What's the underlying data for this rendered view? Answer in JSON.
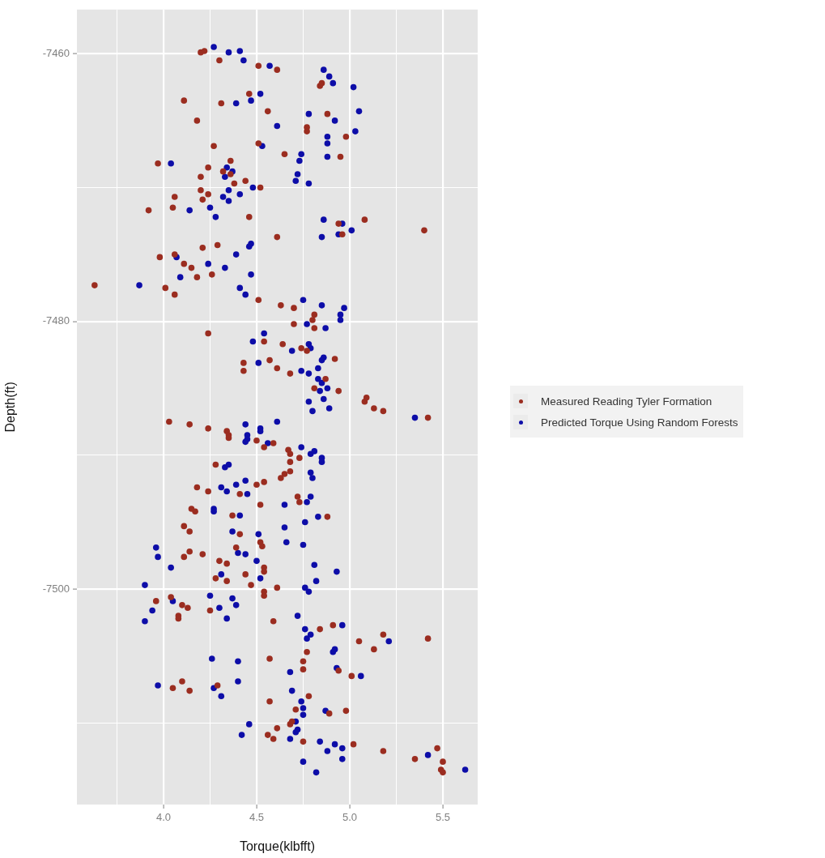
{
  "chart_data": {
    "type": "scatter",
    "xlabel": "Torque(klbfft)",
    "ylabel": "Depth(ft)",
    "xlim": [
      3.535,
      5.687
    ],
    "ylim": [
      -7516.1,
      -7456.7
    ],
    "xticks": [
      {
        "value": 3.75,
        "label": null
      },
      {
        "value": 4,
        "label": "4.0"
      },
      {
        "value": 4.25,
        "label": null
      },
      4.5,
      {
        "value": 4.75,
        "label": null
      },
      {
        "value": 5,
        "label": "5.0"
      },
      {
        "value": 5.25,
        "label": null
      },
      5.5
    ],
    "yticks": [
      {
        "value": -7510,
        "label": null
      },
      -7500,
      {
        "value": -7490,
        "label": null
      },
      -7480,
      {
        "value": -7470,
        "label": null
      },
      -7460
    ],
    "grid": true,
    "legend": "right",
    "marker": "circle",
    "series": [
      {
        "name": "Measured Reading Tyler Formation",
        "color": "#9b2d20",
        "x": [
          4.2,
          4.22,
          4.3,
          4.51,
          4.61,
          4.84,
          4.85,
          4.46,
          4.11,
          4.31,
          4.56,
          4.88,
          4.18,
          4.77,
          4.77,
          4.98,
          4.27,
          4.51,
          4.65,
          4.95,
          3.97,
          4.36,
          4.24,
          4.32,
          4.36,
          4.2,
          4.44,
          4.38,
          4.52,
          4.2,
          4.24,
          4.06,
          4.21,
          4.05,
          3.92,
          4.46,
          5.08,
          4.94,
          5.4,
          4.96,
          4.61,
          4.29,
          4.21,
          3.98,
          4.06,
          4.11,
          4.15,
          4.26,
          4.18,
          3.63,
          4.01,
          4.06,
          4.51,
          4.63,
          4.7,
          4.81,
          4.8,
          4.81,
          4.7,
          4.24,
          4.54,
          4.64,
          4.74,
          4.77,
          4.92,
          4.43,
          4.43,
          4.57,
          4.61,
          4.68,
          4.87,
          4.81,
          4.94,
          5.08,
          5.09,
          5.13,
          5.18,
          5.42,
          4.03,
          4.14,
          4.24,
          4.34,
          4.35,
          4.35,
          4.5,
          4.54,
          4.59,
          4.67,
          4.68,
          4.68,
          4.73,
          4.28,
          4.63,
          4.65,
          4.68,
          4.18,
          4.24,
          4.5,
          4.54,
          4.41,
          4.72,
          4.73,
          4.52,
          4.15,
          4.17,
          4.37,
          4.88,
          4.11,
          4.14,
          4.41,
          4.39,
          4.52,
          4.53,
          4.14,
          4.11,
          4.21,
          4.3,
          4.34,
          4.54,
          4.54,
          4.44,
          4.28,
          4.34,
          4.47,
          4.61,
          4.54,
          4.54,
          3.96,
          4.04,
          4.1,
          4.13,
          4.25,
          4.08,
          4.08,
          4.59,
          4.84,
          4.91,
          5.18,
          5.05,
          5.42,
          5.13,
          4.77,
          4.57,
          4.75,
          4.75,
          4.94,
          5.01,
          4.1,
          4.05,
          4.14,
          4.29,
          4.78,
          4.57,
          4.71,
          4.89,
          4.98,
          4.68,
          4.69,
          4.61,
          4.56,
          4.59,
          4.75,
          5.02,
          5.18,
          5.35,
          5.47,
          5.5,
          5.49,
          5.5
        ],
        "values": [
          -7459.9,
          -7459.8,
          -7460.5,
          -7460.9,
          -7461.2,
          -7462.4,
          -7462.2,
          -7463.0,
          -7463.5,
          -7463.7,
          -7464.3,
          -7464.5,
          -7465.0,
          -7465.5,
          -7465.8,
          -7466.2,
          -7466.9,
          -7466.7,
          -7467.5,
          -7467.7,
          -7468.2,
          -7468.0,
          -7468.5,
          -7468.8,
          -7469.0,
          -7469.2,
          -7469.5,
          -7469.7,
          -7470.0,
          -7470.2,
          -7470.5,
          -7470.7,
          -7470.9,
          -7471.5,
          -7471.7,
          -7472.2,
          -7472.4,
          -7472.7,
          -7473.2,
          -7473.5,
          -7473.7,
          -7474.3,
          -7474.5,
          -7475.2,
          -7475.0,
          -7475.7,
          -7476.0,
          -7476.5,
          -7476.7,
          -7477.3,
          -7477.5,
          -7478.0,
          -7478.4,
          -7478.8,
          -7479.0,
          -7479.5,
          -7479.9,
          -7480.5,
          -7480.2,
          -7480.9,
          -7481.5,
          -7481.7,
          -7482.0,
          -7482.2,
          -7482.8,
          -7483.1,
          -7483.7,
          -7482.9,
          -7483.5,
          -7483.9,
          -7484.3,
          -7485.0,
          -7485.2,
          -7486.0,
          -7485.7,
          -7486.5,
          -7486.7,
          -7487.2,
          -7487.5,
          -7487.7,
          -7488.0,
          -7488.2,
          -7488.5,
          -7488.7,
          -7488.9,
          -7489.4,
          -7489.1,
          -7489.6,
          -7489.9,
          -7490.5,
          -7490.2,
          -7490.7,
          -7491.7,
          -7491.4,
          -7491.2,
          -7492.4,
          -7492.7,
          -7492.2,
          -7492.0,
          -7492.9,
          -7493.1,
          -7493.5,
          -7493.7,
          -7494.0,
          -7494.2,
          -7494.5,
          -7494.6,
          -7495.3,
          -7495.7,
          -7495.9,
          -7496.9,
          -7496.5,
          -7496.8,
          -7497.2,
          -7497.6,
          -7497.4,
          -7497.9,
          -7498.1,
          -7498.4,
          -7498.7,
          -7498.9,
          -7499.2,
          -7499.4,
          -7499.7,
          -7499.9,
          -7500.2,
          -7500.5,
          -7500.9,
          -7500.6,
          -7501.2,
          -7501.4,
          -7501.6,
          -7502.0,
          -7502.2,
          -7502.4,
          -7503.0,
          -7502.7,
          -7503.4,
          -7503.9,
          -7503.7,
          -7504.5,
          -7504.7,
          -7505.2,
          -7505.4,
          -7506.0,
          -7506.1,
          -7506.5,
          -7506.9,
          -7507.4,
          -7507.6,
          -7507.2,
          -7508.0,
          -7508.4,
          -7509.0,
          -7509.3,
          -7509.1,
          -7510.1,
          -7509.9,
          -7510.4,
          -7510.9,
          -7511.2,
          -7511.4,
          -7511.6,
          -7512.1,
          -7512.7,
          -7511.9,
          -7512.9,
          -7513.5,
          -7513.7
        ]
      },
      {
        "name": "Predicted Torque Using Random Forests",
        "color": "#0d0da8",
        "x": [
          4.27,
          4.35,
          4.41,
          4.43,
          4.57,
          4.86,
          4.89,
          4.91,
          5.02,
          4.52,
          4.47,
          4.39,
          5.05,
          4.78,
          4.92,
          4.61,
          5.03,
          4.88,
          4.88,
          4.53,
          4.74,
          4.88,
          4.73,
          4.04,
          4.34,
          4.37,
          4.33,
          4.72,
          4.71,
          4.78,
          4.48,
          4.35,
          4.41,
          4.32,
          4.35,
          4.25,
          4.14,
          4.28,
          4.86,
          4.96,
          5.01,
          4.85,
          4.94,
          4.46,
          4.47,
          4.39,
          4.07,
          4.24,
          4.33,
          4.47,
          4.09,
          3.87,
          4.41,
          4.44,
          4.75,
          4.85,
          4.97,
          4.95,
          4.95,
          4.77,
          4.87,
          4.54,
          4.48,
          4.78,
          4.79,
          4.69,
          4.86,
          4.85,
          4.51,
          4.83,
          4.74,
          4.78,
          4.83,
          4.85,
          4.88,
          4.84,
          4.86,
          4.78,
          4.89,
          4.8,
          5.35,
          4.61,
          4.44,
          4.52,
          4.52,
          4.45,
          4.44,
          4.45,
          4.56,
          4.74,
          4.79,
          4.81,
          4.85,
          4.85,
          4.33,
          4.35,
          4.79,
          4.8,
          4.31,
          4.34,
          4.39,
          4.44,
          4.45,
          4.77,
          4.79,
          4.65,
          4.27,
          4.27,
          4.41,
          4.76,
          4.83,
          4.65,
          4.37,
          4.51,
          4.66,
          4.75,
          3.96,
          3.97,
          4.4,
          4.44,
          4.5,
          4.04,
          4.31,
          4.52,
          4.81,
          4.82,
          4.93,
          3.9,
          4.76,
          4.78,
          4.25,
          4.37,
          4.39,
          4.05,
          4.3,
          3.94,
          3.9,
          4.34,
          4.72,
          4.76,
          4.96,
          4.77,
          4.79,
          5.21,
          4.91,
          4.92,
          4.26,
          4.4,
          4.68,
          4.93,
          5.06,
          4.4,
          3.97,
          4.27,
          4.31,
          4.69,
          4.74,
          4.75,
          4.75,
          4.87,
          4.46,
          4.42,
          4.71,
          4.71,
          4.72,
          4.68,
          4.84,
          4.92,
          4.88,
          4.96,
          4.96,
          5.42,
          5.62,
          4.75,
          4.82
        ],
        "values": [
          -7459.5,
          -7459.9,
          -7459.8,
          -7460.5,
          -7460.9,
          -7461.2,
          -7461.7,
          -7462.2,
          -7462.5,
          -7463.0,
          -7463.5,
          -7463.7,
          -7464.3,
          -7464.5,
          -7465.0,
          -7465.4,
          -7465.8,
          -7466.2,
          -7466.7,
          -7466.9,
          -7467.5,
          -7467.7,
          -7468.0,
          -7468.2,
          -7468.5,
          -7468.8,
          -7469.2,
          -7469.0,
          -7469.5,
          -7469.7,
          -7470.0,
          -7470.2,
          -7470.5,
          -7470.7,
          -7471.0,
          -7471.5,
          -7471.7,
          -7472.2,
          -7472.4,
          -7472.7,
          -7473.2,
          -7473.7,
          -7473.5,
          -7474.4,
          -7474.2,
          -7475.0,
          -7475.2,
          -7475.7,
          -7476.0,
          -7476.5,
          -7476.7,
          -7477.3,
          -7477.5,
          -7478.0,
          -7478.4,
          -7478.8,
          -7479.0,
          -7479.5,
          -7479.9,
          -7480.2,
          -7480.5,
          -7480.9,
          -7481.5,
          -7481.7,
          -7482.0,
          -7482.2,
          -7482.7,
          -7482.9,
          -7483.1,
          -7483.5,
          -7483.7,
          -7483.9,
          -7484.3,
          -7484.6,
          -7485.0,
          -7485.2,
          -7485.8,
          -7486.0,
          -7486.5,
          -7486.7,
          -7487.2,
          -7487.5,
          -7487.7,
          -7488.0,
          -7488.2,
          -7488.5,
          -7489.0,
          -7488.8,
          -7489.1,
          -7489.4,
          -7489.9,
          -7489.7,
          -7490.2,
          -7490.5,
          -7490.9,
          -7490.7,
          -7491.3,
          -7491.7,
          -7492.4,
          -7492.7,
          -7492.2,
          -7491.9,
          -7492.9,
          -7493.5,
          -7493.1,
          -7493.7,
          -7494.0,
          -7494.2,
          -7494.5,
          -7495.0,
          -7494.6,
          -7495.4,
          -7495.7,
          -7495.9,
          -7496.5,
          -7496.7,
          -7496.9,
          -7497.6,
          -7497.3,
          -7497.4,
          -7497.9,
          -7498.4,
          -7498.9,
          -7499.2,
          -7498.2,
          -7499.4,
          -7498.7,
          -7499.7,
          -7499.9,
          -7500.2,
          -7500.5,
          -7500.7,
          -7501.2,
          -7500.9,
          -7501.4,
          -7501.6,
          -7502.4,
          -7502.2,
          -7502.0,
          -7503.0,
          -7502.7,
          -7503.7,
          -7503.4,
          -7503.9,
          -7504.7,
          -7504.5,
          -7505.2,
          -7505.4,
          -7506.2,
          -7505.9,
          -7506.5,
          -7506.9,
          -7507.2,
          -7507.4,
          -7508.0,
          -7507.6,
          -7508.4,
          -7508.9,
          -7509.4,
          -7509.1,
          -7510.1,
          -7510.9,
          -7509.9,
          -7510.7,
          -7510.5,
          -7511.2,
          -7511.4,
          -7511.6,
          -7512.1,
          -7511.9,
          -7512.7,
          -7512.4,
          -7513.5,
          -7512.9,
          -7513.7
        ]
      }
    ]
  }
}
